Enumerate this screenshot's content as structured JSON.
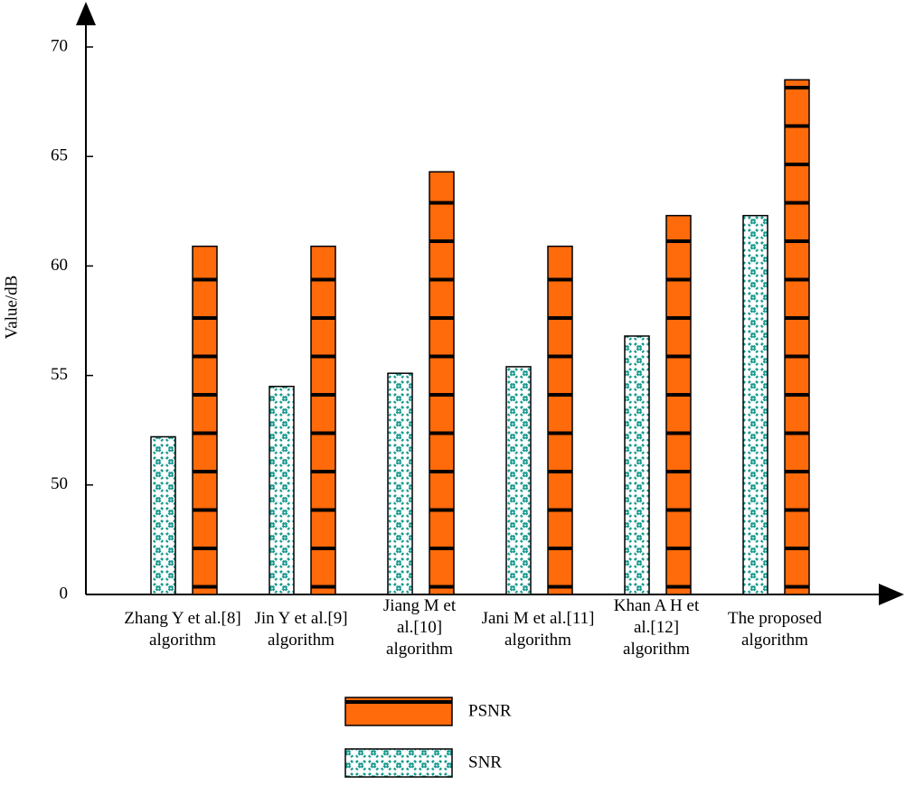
{
  "chart_data": {
    "type": "bar",
    "y_label": "Value/dB",
    "categories": [
      "Zhang Y et al.[8]\nalgorithm",
      "Jin Y et al.[9]\nalgorithm",
      "Jiang M et\nal.[10]\nalgorithm",
      "Jani M et al.[11]\nalgorithm",
      "Khan A H et\nal.[12]\nalgorithm",
      "The proposed\nalgorithm"
    ],
    "series": [
      {
        "name": "SNR",
        "color": "#1a9a8f",
        "values": [
          52.2,
          54.5,
          55.1,
          55.4,
          56.8,
          62.3
        ]
      },
      {
        "name": "PSNR",
        "color": "#ff6a0a",
        "values": [
          60.9,
          60.9,
          64.3,
          60.9,
          62.3,
          68.5
        ]
      }
    ],
    "ylim": [
      0,
      70
    ],
    "yticks": [
      0,
      50,
      55,
      60,
      65,
      70
    ],
    "broken_axis": true
  }
}
